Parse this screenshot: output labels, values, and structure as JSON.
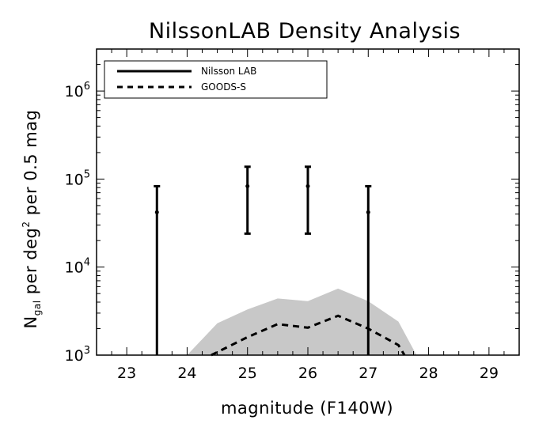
{
  "chart_data": {
    "type": "scatter",
    "title": "NilssonLAB Density Analysis",
    "xlabel": "magnitude (F140W)",
    "ylabel": "N gal per deg2 per 0.5 mag",
    "ylabel_parts": {
      "n": "N",
      "sub": "gal",
      "mid": " per deg",
      "sup": "2",
      "end": " per 0.5 mag"
    },
    "xlim": [
      22.5,
      29.5
    ],
    "ylim": [
      1000,
      3000000
    ],
    "yscale": "log",
    "x_ticks": [
      23,
      24,
      25,
      26,
      27,
      28,
      29
    ],
    "x_tick_labels": [
      "23",
      "24",
      "25",
      "26",
      "27",
      "28",
      "29"
    ],
    "y_ticks": [
      1000,
      10000,
      100000,
      1000000
    ],
    "y_tick_labels": [
      {
        "base": "10",
        "exp": "3"
      },
      {
        "base": "10",
        "exp": "4"
      },
      {
        "base": "10",
        "exp": "5"
      },
      {
        "base": "10",
        "exp": "6"
      }
    ],
    "legend": {
      "position": "top-left",
      "entries": [
        {
          "label": "Nilsson LAB",
          "style": "solid"
        },
        {
          "label": "GOODS-S",
          "style": "dashed"
        }
      ]
    },
    "series": [
      {
        "name": "Nilsson LAB",
        "style": "points-with-errorbars",
        "color": "#000000",
        "points": [
          {
            "x": 23.5,
            "y": 42000,
            "ylow": 1000,
            "yhigh": 83000
          },
          {
            "x": 25.0,
            "y": 83000,
            "ylow": 24000,
            "yhigh": 138000
          },
          {
            "x": 26.0,
            "y": 83000,
            "ylow": 24000,
            "yhigh": 138000
          },
          {
            "x": 27.0,
            "y": 42000,
            "ylow": 1000,
            "yhigh": 83000
          }
        ]
      },
      {
        "name": "GOODS-S",
        "style": "dashed-line",
        "color": "#000000",
        "x": [
          24.4,
          25.0,
          25.5,
          26.0,
          26.5,
          27.0,
          27.5,
          27.6
        ],
        "y": [
          1000,
          1600,
          2250,
          2050,
          2800,
          2000,
          1300,
          1000
        ]
      },
      {
        "style": "shaded-band",
        "color": "#c8c8c8",
        "x": [
          24.0,
          24.5,
          25.0,
          25.5,
          26.0,
          26.5,
          27.0,
          27.5,
          27.8
        ],
        "y": [
          1000,
          2300,
          3300,
          4400,
          4100,
          5700,
          4100,
          2400,
          1000
        ]
      }
    ]
  }
}
